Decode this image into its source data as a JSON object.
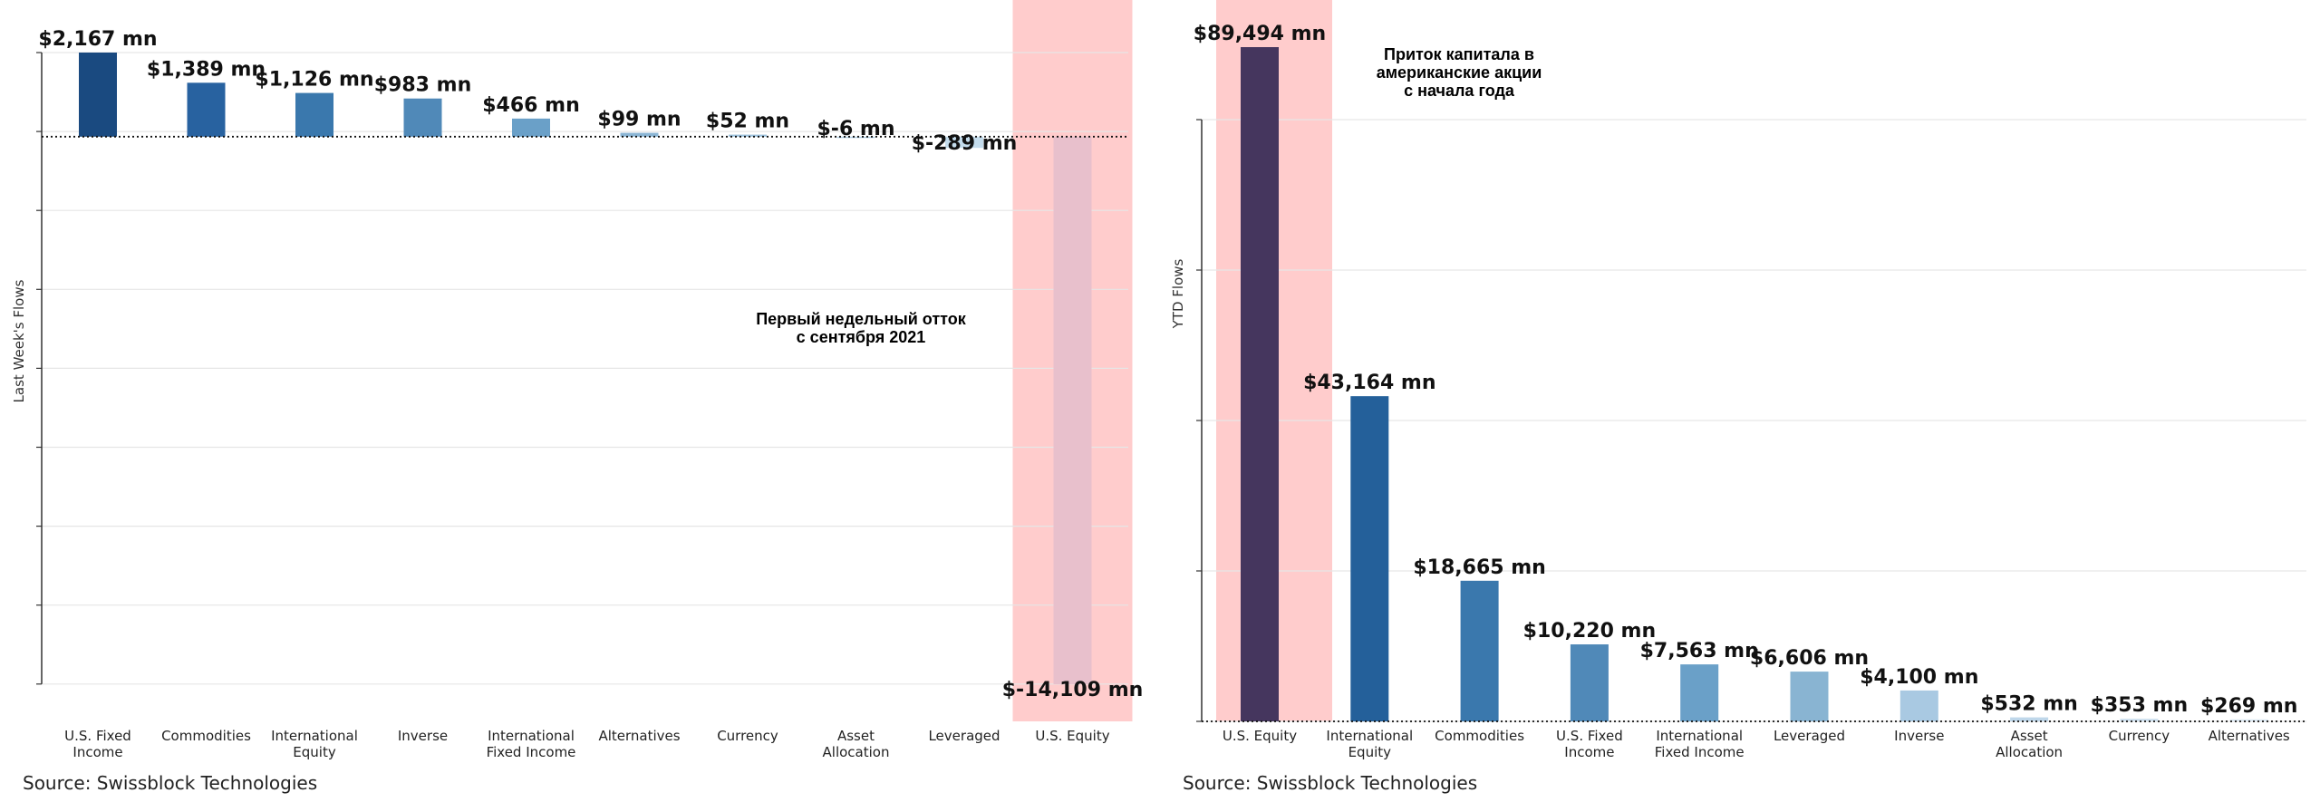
{
  "charts": [
    {
      "type": "bar",
      "ylabel": "Last Week's Flows",
      "categories": [
        "U.S. Fixed\nIncome",
        "Commodities",
        "International\nEquity",
        "Inverse",
        "International\nFixed Income",
        "Alternatives",
        "Currency",
        "Asset\nAllocation",
        "Leveraged",
        "U.S. Equity"
      ],
      "values": [
        2167,
        1389,
        1126,
        983,
        466,
        99,
        52,
        -6,
        -289,
        -14109
      ],
      "value_labels": [
        "$2,167 mn",
        "$1,389 mn",
        "$1,126 mn",
        "$983 mn",
        "$466 mn",
        "$99 mn",
        "$52 mn",
        "$-6 mn",
        "$-289 mn",
        "$-14,109 mn"
      ],
      "ylim": [
        -14109,
        2167
      ],
      "colors": [
        "#1a4a80",
        "#2862a0",
        "#3a78ad",
        "#5089b8",
        "#6aa0c8",
        "#8bb5d4",
        "#9ec3de",
        "#b3d1e6",
        "#c4dcec",
        "#e8c0cc"
      ],
      "highlight_category": "U.S. Equity",
      "annotation": "Первый недельный отток\nс сентября 2021",
      "grid": true,
      "zero_line": "dotted"
    },
    {
      "type": "bar",
      "ylabel": "YTD Flows",
      "categories": [
        "U.S. Equity",
        "International\nEquity",
        "Commodities",
        "U.S. Fixed\nIncome",
        "International\nFixed Income",
        "Leveraged",
        "Inverse",
        "Asset\nAllocation",
        "Currency",
        "Alternatives"
      ],
      "values": [
        89494,
        43164,
        18665,
        10220,
        7563,
        6606,
        4100,
        532,
        353,
        269
      ],
      "value_labels": [
        "$89,494 mn",
        "$43,164 mn",
        "$18,665 mn",
        "$10,220 mn",
        "$7,563 mn",
        "$6,606 mn",
        "$4,100 mn",
        "$532 mn",
        "$353 mn",
        "$269 mn"
      ],
      "ylim": [
        0,
        89494
      ],
      "colors": [
        "#45365e",
        "#24609a",
        "#3a78ad",
        "#5089b8",
        "#6aa0c8",
        "#89b4d2",
        "#a9c9e2",
        "#bfd7ea",
        "#cfe1ef",
        "#dde9f3"
      ],
      "highlight_category": "U.S. Equity",
      "annotation": "Приток капитала в\nамериканские акции\nс начала года",
      "grid": true,
      "zero_line": "dotted"
    }
  ],
  "source": "Source: Swissblock Technologies",
  "highlight_color": "#ffcccc"
}
